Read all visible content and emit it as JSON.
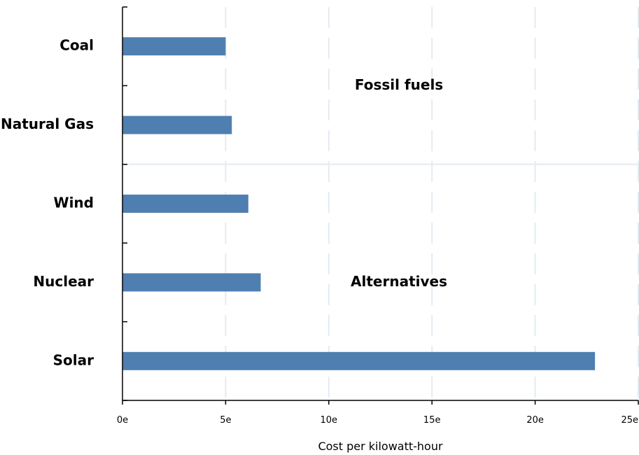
{
  "chart_data": {
    "type": "bar",
    "orientation": "horizontal",
    "categories": [
      "Coal",
      "Natural Gas",
      "Wind",
      "Nuclear",
      "Solar"
    ],
    "values": [
      5.0,
      5.3,
      6.1,
      6.7,
      22.9
    ],
    "xlabel": "Cost per kilowatt-hour",
    "ylabel": "",
    "xlim": [
      0,
      25
    ],
    "xticks": [
      0,
      5,
      10,
      15,
      20,
      25
    ],
    "xtick_labels": [
      "0e",
      "5e",
      "10e",
      "15e",
      "20e",
      "25e"
    ],
    "grid": "vertical dashed",
    "bar_color": "#4f7fb1",
    "grid_color": "#e3ebf3",
    "group_labels": [
      {
        "text": "Fossil fuels",
        "categories": [
          "Coal",
          "Natural Gas"
        ]
      },
      {
        "text": "Alternatives",
        "categories": [
          "Wind",
          "Nuclear",
          "Solar"
        ]
      }
    ]
  }
}
